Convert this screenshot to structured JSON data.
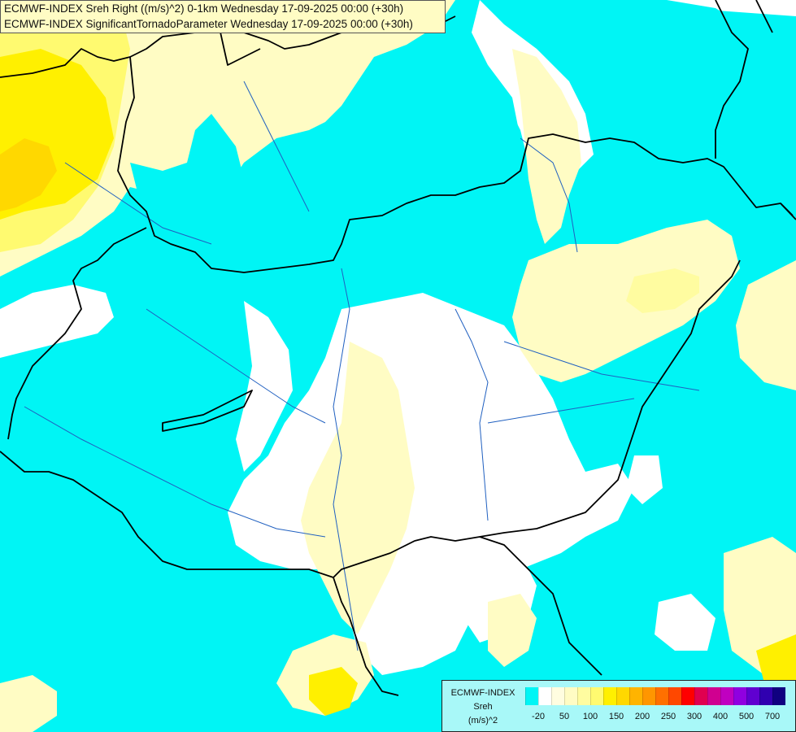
{
  "header": {
    "line1": "ECMWF-INDEX Sreh Right ((m/s)^2) 0-1km Wednesday 17-09-2025 00:00 (+30h)",
    "line2": "ECMWF-INDEX SignificantTornadoParameter Wednesday 17-09-2025 00:00 (+30h)"
  },
  "legend": {
    "title_line1": "ECMWF-INDEX",
    "title_line2": "Sreh",
    "title_line3": "(m/s)^2",
    "colors": [
      "#00f5f5",
      "#ffffff",
      "#fffde0",
      "#fffcc4",
      "#fffca0",
      "#fffa70",
      "#fff000",
      "#ffd800",
      "#ffb400",
      "#ff9600",
      "#ff7000",
      "#ff4800",
      "#ff0000",
      "#e00050",
      "#d00090",
      "#c000c0",
      "#9000e0",
      "#6000d0",
      "#3000b0",
      "#100080"
    ],
    "ticks": [
      "-20",
      "50",
      "100",
      "150",
      "200",
      "250",
      "300",
      "400",
      "500",
      "700"
    ]
  },
  "colors": {
    "cyan": "#00f5f5",
    "pale_yellow": "#fffcc4",
    "yellow": "#fff000",
    "orange": "#ffd800",
    "border": "#000000",
    "river": "#2060c0"
  }
}
